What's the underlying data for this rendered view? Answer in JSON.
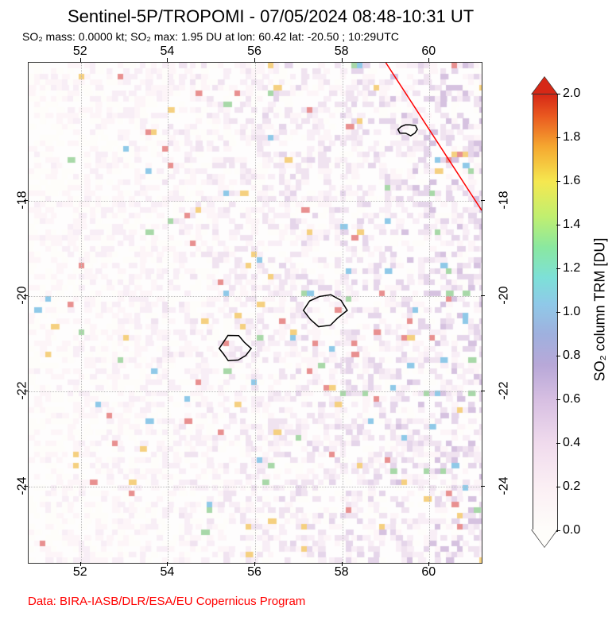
{
  "title": "Sentinel-5P/TROPOMI - 07/05/2024 08:48-10:31 UT",
  "subtitle": "SO₂ mass: 0.0000 kt; SO₂ max: 1.95 DU at lon: 60.42 lat: -20.50 ; 10:29UTC",
  "credit": "Data: BIRA-IASB/DLR/ESA/EU Copernicus Program",
  "map": {
    "type": "geographic-heatmap",
    "x_ticks": [
      52,
      54,
      56,
      58,
      60
    ],
    "y_ticks": [
      -18,
      -20,
      -22,
      -24
    ],
    "xlim": [
      50.8,
      61.2
    ],
    "ylim": [
      -25.6,
      -15.1
    ],
    "grid_color": "#bbbbbb",
    "border_color": "#333333",
    "background_color": "#fefdfd",
    "islands": [
      {
        "cx_lon": 57.6,
        "cy_lat": -20.3,
        "rx": 0.45,
        "ry": 0.35,
        "shape": "irregular"
      },
      {
        "cx_lon": 55.5,
        "cy_lat": -21.1,
        "rx": 0.35,
        "ry": 0.25,
        "shape": "irregular"
      },
      {
        "cx_lon": 59.5,
        "cy_lat": -16.5,
        "rx": 0.2,
        "ry": 0.12,
        "shape": "irregular"
      }
    ],
    "red_line": {
      "x1_lon": 59.0,
      "y1_lat": -15.1,
      "x2_lon": 61.2,
      "y2_lat": -18.2,
      "color": "#ff0000"
    },
    "noise": {
      "base_colors": [
        "#fefdfa",
        "#fdf5f8",
        "#f8eef6",
        "#f0e3f0",
        "#e5d5ea",
        "#d6c2e0"
      ],
      "accent_colors": [
        "#8fc9e8",
        "#a8d8a8",
        "#f5d080",
        "#e89090"
      ],
      "density": 0.55,
      "cell_size": 7
    }
  },
  "colorbar": {
    "label": "SO₂ column TRM [DU]",
    "ticks": [
      0.0,
      0.2,
      0.4,
      0.6,
      0.8,
      1.0,
      1.2,
      1.4,
      1.6,
      1.8,
      2.0
    ],
    "min": 0.0,
    "max": 2.0,
    "label_fontsize": 18,
    "tick_fontsize": 16,
    "gradient_stops": [
      {
        "v": 0.0,
        "c": "#fefdfa"
      },
      {
        "v": 0.1,
        "c": "#fbeff4"
      },
      {
        "v": 0.2,
        "c": "#f0dbed"
      },
      {
        "v": 0.3,
        "c": "#d7bfe2"
      },
      {
        "v": 0.38,
        "c": "#b8a8d8"
      },
      {
        "v": 0.45,
        "c": "#9fb0de"
      },
      {
        "v": 0.52,
        "c": "#8fc9e8"
      },
      {
        "v": 0.58,
        "c": "#7de0d8"
      },
      {
        "v": 0.65,
        "c": "#8ae8a0"
      },
      {
        "v": 0.72,
        "c": "#c0ef70"
      },
      {
        "v": 0.8,
        "c": "#f5e850"
      },
      {
        "v": 0.88,
        "c": "#f5a830"
      },
      {
        "v": 0.95,
        "c": "#ea5a20"
      },
      {
        "v": 1.0,
        "c": "#d62816"
      }
    ],
    "over_color": "#d62816",
    "under_color": "#fefdfa"
  }
}
